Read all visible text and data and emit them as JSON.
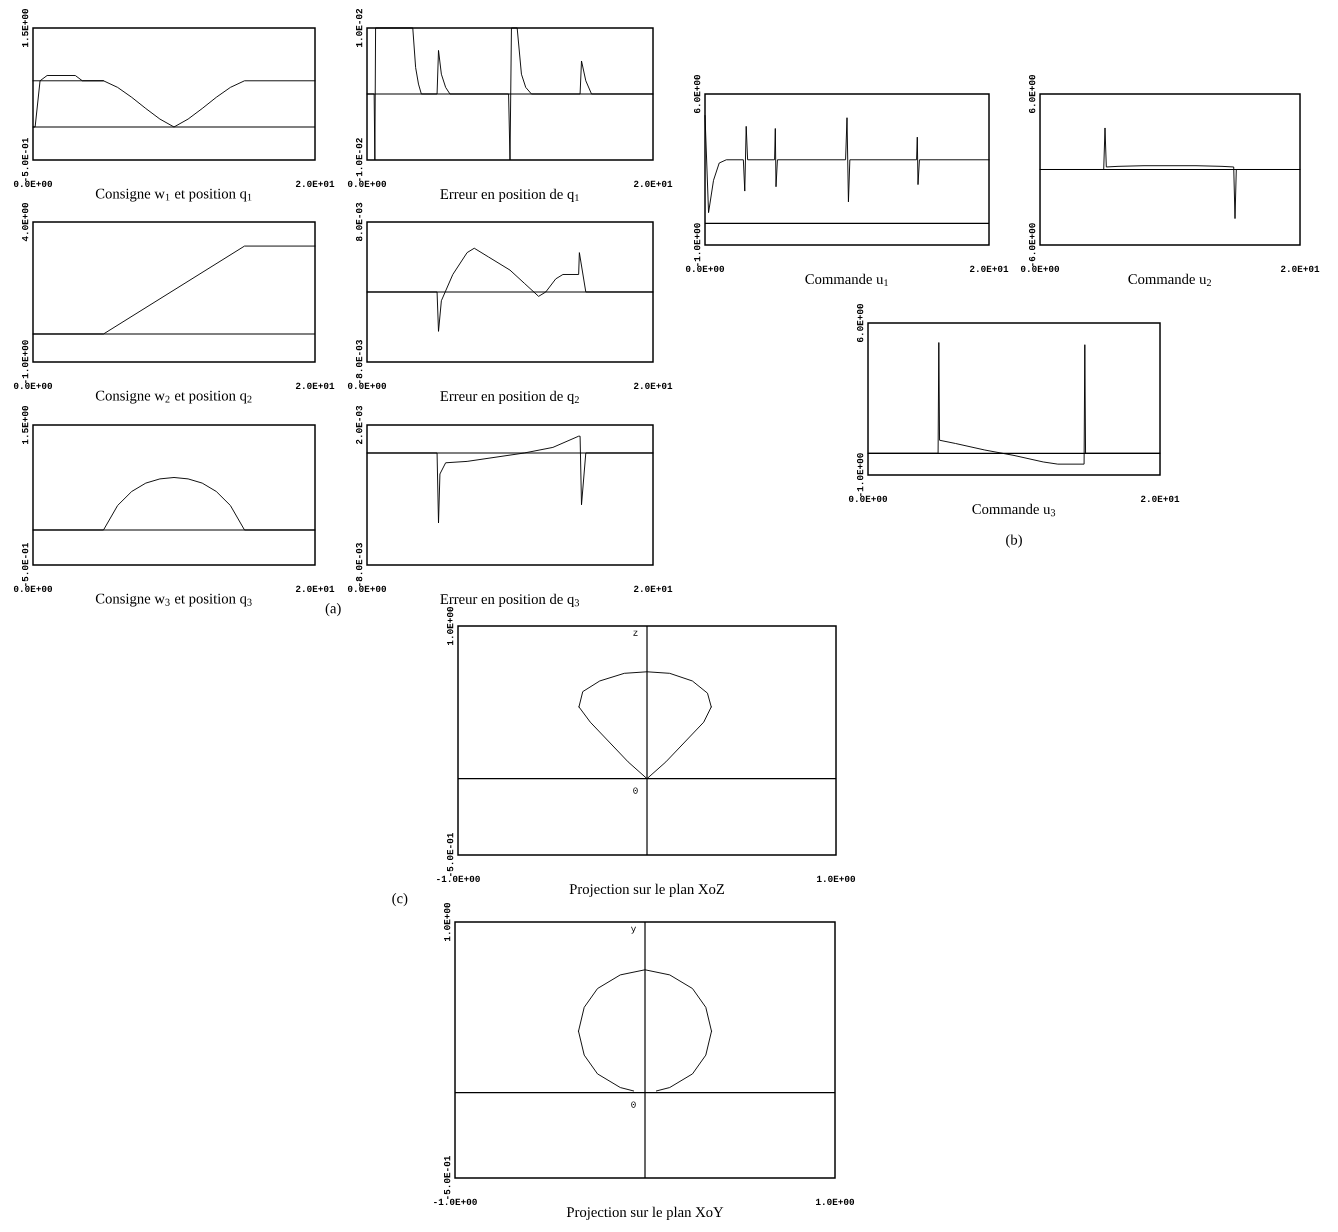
{
  "chart_data": [
    {
      "type": "line",
      "title": "Consigne w$_{1}$ et position q$_{1}$",
      "xlim": [
        0,
        20
      ],
      "ylim": [
        -0.5,
        1.5
      ],
      "xticks": [
        {
          "value": 0,
          "label": "0.0E+00"
        },
        {
          "value": 20,
          "label": "2.0E+01"
        }
      ],
      "yticks": [
        {
          "value": 1.5,
          "label": "1.5E+00"
        },
        {
          "value": -0.5,
          "label": "-5.0E-01"
        }
      ],
      "series": [
        {
          "color": "#000000",
          "x": [
            0,
            5,
            6,
            7,
            8,
            9,
            10,
            11,
            12,
            13,
            14,
            15,
            20
          ],
          "values": [
            0.7,
            0.7,
            0.6,
            0.45,
            0.28,
            0.12,
            0,
            0.12,
            0.28,
            0.45,
            0.6,
            0.7,
            0.7
          ]
        },
        {
          "color": "#000000",
          "x": [
            0,
            0.15,
            0.5,
            1.0,
            1.5,
            3.0,
            3.5,
            5
          ],
          "values": [
            0,
            0,
            0.7,
            0.78,
            0.78,
            0.78,
            0.7,
            0.7
          ]
        }
      ],
      "ref_lines": [
        {
          "axis": "y",
          "value": 0
        }
      ]
    },
    {
      "type": "line",
      "title": "Erreur en position de q$_{1}$",
      "xlim": [
        0,
        20
      ],
      "ylim": [
        -0.01,
        0.01
      ],
      "xticks": [
        {
          "value": 0,
          "label": "0.0E+00"
        },
        {
          "value": 20,
          "label": "2.0E+01"
        }
      ],
      "yticks": [
        {
          "value": 0.01,
          "label": "1.0E-02"
        },
        {
          "value": -0.01,
          "label": "-1.0E-02"
        }
      ],
      "series": [
        {
          "color": "#000000",
          "x": [
            0,
            0.5,
            0.55,
            0.6,
            3.2,
            3.4,
            3.6,
            3.8,
            4.9,
            5.0,
            5.2,
            5.5,
            5.8,
            9.9,
            10.0,
            10.1,
            10.5,
            10.8,
            11.1,
            11.5,
            14.9,
            15.0,
            15.3,
            15.7,
            20
          ],
          "values": [
            0,
            0,
            -0.01,
            0.01,
            0.01,
            0.004,
            0.0015,
            0,
            0,
            0.0066,
            0.003,
            0.001,
            0,
            0,
            -0.01,
            0.01,
            0.01,
            0.003,
            0.001,
            0,
            0,
            0.005,
            0.002,
            0,
            0
          ]
        }
      ],
      "ref_lines": [
        {
          "axis": "y",
          "value": 0
        }
      ]
    },
    {
      "type": "line",
      "title": "Consigne w$_{2}$ et position q$_{2}$",
      "xlim": [
        0,
        20
      ],
      "ylim": [
        -1,
        4
      ],
      "xticks": [
        {
          "value": 0,
          "label": "0.0E+00"
        },
        {
          "value": 20,
          "label": "2.0E+01"
        }
      ],
      "yticks": [
        {
          "value": 4,
          "label": "4.0E+00"
        },
        {
          "value": -1,
          "label": "-1.0E+00"
        }
      ],
      "series": [
        {
          "color": "#000000",
          "x": [
            0,
            5,
            15,
            20
          ],
          "values": [
            0,
            0,
            3.14,
            3.14
          ]
        }
      ],
      "ref_lines": [
        {
          "axis": "y",
          "value": 0
        }
      ]
    },
    {
      "type": "line",
      "title": "Erreur en position de q$_{2}$",
      "xlim": [
        0,
        20
      ],
      "ylim": [
        -0.008,
        0.008
      ],
      "xticks": [
        {
          "value": 0,
          "label": "0.0E+00"
        },
        {
          "value": 20,
          "label": "2.0E+01"
        }
      ],
      "yticks": [
        {
          "value": 0.008,
          "label": "8.0E-03"
        },
        {
          "value": -0.008,
          "label": "-8.0E-03"
        }
      ],
      "series": [
        {
          "color": "#000000",
          "x": [
            0,
            4.9,
            5.0,
            5.2,
            6,
            7,
            7.5,
            8.5,
            10,
            11,
            12,
            12.5,
            13.2,
            13.7,
            14.8,
            14.85,
            15.3,
            20
          ],
          "values": [
            0,
            0,
            -0.0045,
            -0.001,
            0.002,
            0.0045,
            0.005,
            0.004,
            0.0025,
            0.001,
            -0.0005,
            0,
            0.0015,
            0.002,
            0.002,
            0.0045,
            0,
            0
          ]
        }
      ],
      "ref_lines": [
        {
          "axis": "y",
          "value": 0
        }
      ]
    },
    {
      "type": "line",
      "title": "Consigne w$_{3}$ et position q$_{3}$",
      "xlim": [
        0,
        20
      ],
      "ylim": [
        -0.5,
        1.5
      ],
      "xticks": [
        {
          "value": 0,
          "label": "0.0E+00"
        },
        {
          "value": 20,
          "label": "2.0E+01"
        }
      ],
      "yticks": [
        {
          "value": 1.5,
          "label": "1.5E+00"
        },
        {
          "value": -0.5,
          "label": "-5.0E-01"
        }
      ],
      "series": [
        {
          "color": "#000000",
          "x": [
            0,
            5,
            6,
            7,
            8,
            9,
            10,
            11,
            12,
            13,
            14,
            15,
            20
          ],
          "values": [
            0,
            0,
            0.35,
            0.55,
            0.67,
            0.73,
            0.75,
            0.73,
            0.67,
            0.55,
            0.35,
            0,
            0
          ]
        }
      ],
      "ref_lines": [
        {
          "axis": "y",
          "value": 0
        }
      ],
      "annotations": [
        "(a)"
      ]
    },
    {
      "type": "line",
      "title": "Erreur en position de q$_{3}$",
      "xlim": [
        0,
        20
      ],
      "ylim": [
        -0.008,
        0.002
      ],
      "xticks": [
        {
          "value": 0,
          "label": "0.0E+00"
        },
        {
          "value": 20,
          "label": "2.0E+01"
        }
      ],
      "yticks": [
        {
          "value": 0.002,
          "label": "2.0E-03"
        },
        {
          "value": -0.008,
          "label": "-8.0E-03"
        }
      ],
      "series": [
        {
          "color": "#000000",
          "x": [
            0,
            4.9,
            5.0,
            5.1,
            5.5,
            7,
            9,
            11,
            13,
            14.8,
            14.9,
            15.0,
            15.3,
            20
          ],
          "values": [
            0,
            0,
            -0.005,
            -0.0015,
            -0.0007,
            -0.0006,
            -0.0003,
            0,
            0.0004,
            0.0012,
            0.0012,
            -0.0037,
            0,
            0
          ]
        }
      ],
      "ref_lines": [
        {
          "axis": "y",
          "value": 0
        }
      ]
    },
    {
      "type": "line",
      "title": "Commande u$_{1}$",
      "xlim": [
        0,
        20
      ],
      "ylim": [
        -1,
        6
      ],
      "xticks": [
        {
          "value": 0,
          "label": "0.0E+00"
        },
        {
          "value": 20,
          "label": "2.0E+01"
        }
      ],
      "yticks": [
        {
          "value": 6,
          "label": "6.0E+00"
        },
        {
          "value": -1,
          "label": "-1.0E+00"
        }
      ],
      "series": [
        {
          "color": "#000000",
          "x": [
            0,
            0.25,
            0.6,
            1.0,
            1.5,
            2.7,
            2.8,
            2.9,
            3.0,
            4.9,
            4.95,
            5.0,
            5.1,
            9.9,
            10.0,
            10.1,
            10.2,
            14.9,
            14.95,
            15.0,
            15.1,
            20
          ],
          "values": [
            5.0,
            0.5,
            2.0,
            2.8,
            2.95,
            2.95,
            1.5,
            4.5,
            2.95,
            2.95,
            4.4,
            1.7,
            2.95,
            2.95,
            4.9,
            1.0,
            2.95,
            2.95,
            4.0,
            1.8,
            2.95,
            2.95
          ]
        }
      ],
      "ref_lines": [
        {
          "axis": "y",
          "value": 0
        }
      ]
    },
    {
      "type": "line",
      "title": "Commande u$_{2}$",
      "xlim": [
        0,
        20
      ],
      "ylim": [
        -6,
        6
      ],
      "xticks": [
        {
          "value": 0,
          "label": "0.0E+00"
        },
        {
          "value": 20,
          "label": "2.0E+01"
        }
      ],
      "yticks": [
        {
          "value": 6,
          "label": "6.0E+00"
        },
        {
          "value": -6,
          "label": "-6.0E+00"
        }
      ],
      "series": [
        {
          "color": "#000000",
          "x": [
            0,
            4.9,
            5.0,
            5.1,
            6,
            8,
            10,
            12,
            14,
            14.9,
            15.0,
            15.1,
            20
          ],
          "values": [
            0,
            0,
            3.3,
            0.2,
            0.25,
            0.3,
            0.3,
            0.3,
            0.25,
            0.2,
            -3.9,
            0,
            0
          ]
        }
      ],
      "ref_lines": [
        {
          "axis": "y",
          "value": 0
        }
      ]
    },
    {
      "type": "line",
      "title": "Commande u$_{3}$",
      "xlim": [
        0,
        20
      ],
      "ylim": [
        -1,
        6
      ],
      "xticks": [
        {
          "value": 0,
          "label": "0.0E+00"
        },
        {
          "value": 20,
          "label": "2.0E+01"
        }
      ],
      "yticks": [
        {
          "value": 6,
          "label": "6.0E+00"
        },
        {
          "value": -1,
          "label": "-1.0E+00"
        }
      ],
      "series": [
        {
          "color": "#000000",
          "x": [
            0,
            4.8,
            4.85,
            4.9,
            6,
            8,
            10,
            12,
            13,
            14.8,
            14.85,
            14.9,
            20
          ],
          "values": [
            0,
            0,
            5.1,
            0.6,
            0.45,
            0.15,
            -0.1,
            -0.4,
            -0.5,
            -0.5,
            5.0,
            0,
            0
          ]
        }
      ],
      "ref_lines": [
        {
          "axis": "y",
          "value": 0
        }
      ],
      "annotations": [
        "(b)"
      ]
    },
    {
      "type": "line",
      "title": "Projection sur le plan XoZ",
      "xlim": [
        -1,
        1
      ],
      "ylim": [
        -0.5,
        1.0
      ],
      "xticks": [
        {
          "value": -1,
          "label": "-1.0E+00"
        },
        {
          "value": 1,
          "label": "1.0E+00"
        }
      ],
      "yticks": [
        {
          "value": 1.0,
          "label": "1.0E+00"
        },
        {
          "value": -0.5,
          "label": "-5.0E-01"
        }
      ],
      "series": [
        {
          "color": "#000000",
          "x": [
            -0.36,
            -0.34,
            -0.25,
            -0.12,
            0,
            0.12,
            0.24,
            0.32,
            0.34
          ],
          "values": [
            0.47,
            0.57,
            0.64,
            0.69,
            0.7,
            0.69,
            0.64,
            0.56,
            0.47
          ]
        },
        {
          "color": "#000000",
          "x": [
            -0.36,
            -0.3,
            -0.2,
            -0.1,
            0,
            0.1,
            0.2,
            0.3,
            0.34
          ],
          "values": [
            0.47,
            0.37,
            0.24,
            0.11,
            0,
            0.11,
            0.24,
            0.37,
            0.47
          ]
        }
      ],
      "ref_lines": [
        {
          "axis": "y",
          "value": 0
        },
        {
          "axis": "x",
          "value": 0,
          "label": "z"
        }
      ],
      "annotations": [
        "(c)",
        {
          "text": "0",
          "x": 0,
          "y": 0
        }
      ]
    },
    {
      "type": "line",
      "title": "Projection sur le plan XoY",
      "xlim": [
        -1,
        1
      ],
      "ylim": [
        -0.5,
        1.0
      ],
      "xticks": [
        {
          "value": -1,
          "label": "-1.0E+00"
        },
        {
          "value": 1,
          "label": "1.0E+00"
        }
      ],
      "yticks": [
        {
          "value": 1.0,
          "label": "1.0E+00"
        },
        {
          "value": -0.5,
          "label": "-5.0E-01"
        }
      ],
      "series": [
        {
          "color": "#000000",
          "x": [
            -0.35,
            -0.32,
            -0.25,
            -0.13,
            0,
            0.13,
            0.25,
            0.32,
            0.35
          ],
          "values": [
            0.36,
            0.5,
            0.61,
            0.69,
            0.72,
            0.69,
            0.61,
            0.5,
            0.36
          ]
        },
        {
          "color": "#000000",
          "x": [
            -0.35,
            -0.32,
            -0.25,
            -0.13,
            -0.06
          ],
          "values": [
            0.36,
            0.22,
            0.11,
            0.03,
            0.01
          ]
        },
        {
          "color": "#000000",
          "x": [
            0.06,
            0.13,
            0.25,
            0.32,
            0.35
          ],
          "values": [
            0.01,
            0.03,
            0.11,
            0.22,
            0.36
          ]
        }
      ],
      "ref_lines": [
        {
          "axis": "y",
          "value": 0
        },
        {
          "axis": "x",
          "value": 0,
          "label": "y"
        }
      ],
      "annotations": [
        {
          "text": "0",
          "x": 0,
          "y": 0
        }
      ]
    }
  ]
}
